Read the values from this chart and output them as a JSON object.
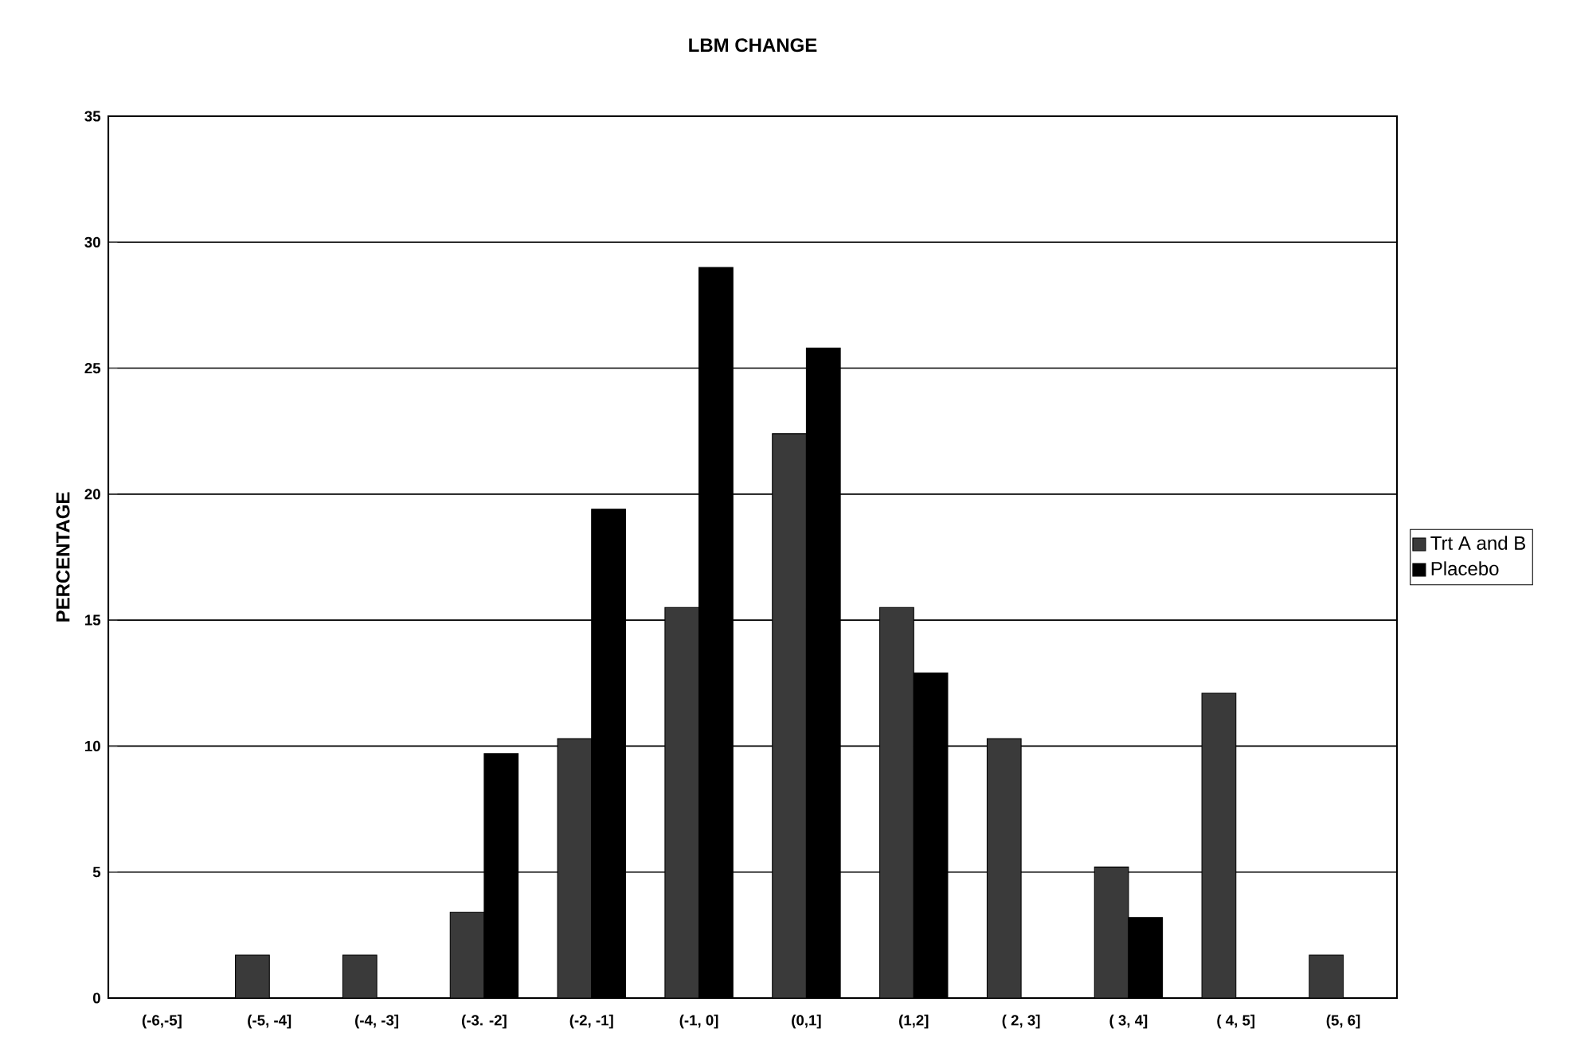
{
  "chart_data": {
    "type": "bar",
    "title": "LBM CHANGE",
    "ylabel": "PERCENTAGE",
    "categories": [
      "(-6,-5]",
      "(-5, -4]",
      "(-4, -3]",
      "(-3. -2]",
      "(-2, -1]",
      "(-1, 0]",
      "(0,1]",
      "(1,2]",
      "( 2, 3]",
      "( 3, 4]",
      "( 4, 5]",
      "(5, 6]"
    ],
    "series": [
      {
        "name": "Trt A and B",
        "color": "#3a3a3a",
        "values": [
          0,
          1.7,
          1.7,
          3.4,
          10.3,
          15.5,
          22.4,
          15.5,
          10.3,
          5.2,
          12.1,
          1.7
        ]
      },
      {
        "name": "Placebo",
        "color": "#000000",
        "values": [
          0,
          0,
          0,
          9.7,
          19.4,
          29.0,
          25.8,
          12.9,
          0,
          3.2,
          0,
          0
        ]
      }
    ],
    "ylim": [
      0,
      35
    ],
    "yticks": [
      0,
      5,
      10,
      15,
      20,
      25,
      30,
      35
    ],
    "grid": "y",
    "legend": "right"
  }
}
